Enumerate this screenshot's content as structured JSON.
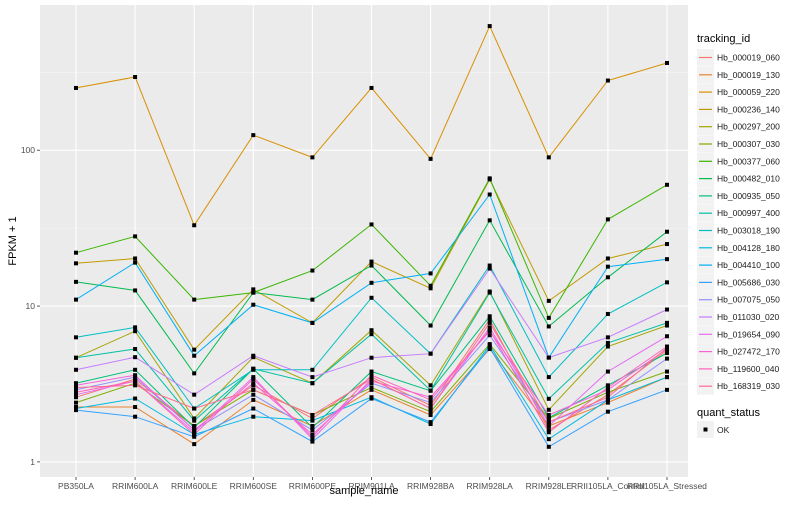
{
  "chart_data": {
    "type": "line",
    "xlabel": "sample_name",
    "ylabel": "FPKM + 1",
    "y_scale": "log10",
    "ylim": [
      0.8,
      855
    ],
    "y_ticks": [
      "1",
      "10",
      "100"
    ],
    "y_tick_values": [
      1,
      10,
      100
    ],
    "grid": true,
    "legend_position": "right",
    "categories": [
      "PB350LA",
      "RRIM600LA",
      "RRIM600LE",
      "RRIM600SE",
      "RRIM600PE",
      "RRIM901LA",
      "RRIM928BA",
      "RRIM928LA",
      "RRIM928LE",
      "RRII105LA_Control",
      "RRII105LA_Stressed"
    ],
    "color_legend_title": "tracking_id",
    "shape_legend_title": "quant_status",
    "shape_legend_items": [
      "OK"
    ],
    "series": [
      {
        "name": "Hb_000019_060",
        "color": "#F8766D",
        "values": [
          2.6,
          3.4,
          1.7,
          3.1,
          1.9,
          3.5,
          2.3,
          8.2,
          1.6,
          2.7,
          5.2
        ]
      },
      {
        "name": "Hb_000019_130",
        "color": "#EA8331",
        "values": [
          2.25,
          2.25,
          1.3,
          2.5,
          1.7,
          2.9,
          2.0,
          5.3,
          1.7,
          2.4,
          3.5
        ]
      },
      {
        "name": "Hb_000059_220",
        "color": "#D89000",
        "values": [
          251,
          295,
          33,
          125,
          90,
          251,
          88,
          626,
          90,
          280,
          363
        ]
      },
      {
        "name": "Hb_000236_140",
        "color": "#C09B00",
        "values": [
          18.8,
          20.2,
          5.25,
          12.8,
          7.8,
          19.3,
          13,
          65,
          10.8,
          20.2,
          25
        ]
      },
      {
        "name": "Hb_000297_200",
        "color": "#A3A500",
        "values": [
          4.66,
          6.9,
          1.9,
          4.7,
          3.2,
          7,
          3.1,
          12.4,
          2.16,
          5.5,
          7.5
        ]
      },
      {
        "name": "Hb_000307_030",
        "color": "#7CAE00",
        "values": [
          2.4,
          3.2,
          1.7,
          2.9,
          2.0,
          3.0,
          2.1,
          5.7,
          1.9,
          2.8,
          3.8
        ]
      },
      {
        "name": "Hb_000377_060",
        "color": "#39B600",
        "values": [
          22,
          28,
          11,
          12.2,
          16.9,
          33.4,
          13.5,
          66,
          8.4,
          36,
          60
        ]
      },
      {
        "name": "Hb_000482_010",
        "color": "#00BB4E",
        "values": [
          14.3,
          12.6,
          3.7,
          12.2,
          11,
          18.2,
          7.5,
          35.5,
          7.4,
          15.3,
          30
        ]
      },
      {
        "name": "Hb_000935_050",
        "color": "#00BF7D",
        "values": [
          3.2,
          3.9,
          1.66,
          3.96,
          1.66,
          3.8,
          2.86,
          8.6,
          1.92,
          3.1,
          5.0
        ]
      },
      {
        "name": "Hb_000997_400",
        "color": "#00C1A3",
        "values": [
          4.66,
          5.3,
          1.84,
          3.96,
          3.2,
          6.6,
          2.87,
          12.2,
          2.54,
          5.8,
          7.8
        ]
      },
      {
        "name": "Hb_003018_190",
        "color": "#00BFC4",
        "values": [
          6.3,
          7.3,
          2.2,
          3.9,
          3.9,
          11.3,
          4.95,
          18.2,
          3.5,
          8.9,
          14.2
        ]
      },
      {
        "name": "Hb_004128_180",
        "color": "#00BAE0",
        "values": [
          2.2,
          2.55,
          1.5,
          1.95,
          1.84,
          2.6,
          1.75,
          5.6,
          1.4,
          2.5,
          3.5
        ]
      },
      {
        "name": "Hb_004410_100",
        "color": "#00B0F6",
        "values": [
          11,
          19,
          4.8,
          10.2,
          7.8,
          14.1,
          16.2,
          52,
          4.67,
          17.9,
          20
        ]
      },
      {
        "name": "Hb_005686_030",
        "color": "#35A2FF",
        "values": [
          2.15,
          1.95,
          1.45,
          2.2,
          1.35,
          2.55,
          1.8,
          5.4,
          1.25,
          2.1,
          2.9
        ]
      },
      {
        "name": "Hb_007075_050",
        "color": "#9590FF",
        "values": [
          2.9,
          3.5,
          1.6,
          2.7,
          1.6,
          3.2,
          2.4,
          6.5,
          1.8,
          2.5,
          4.6
        ]
      },
      {
        "name": "Hb_011030_020",
        "color": "#C77CFF",
        "values": [
          3.9,
          4.7,
          2.7,
          4.8,
          3.5,
          4.66,
          4.95,
          17.4,
          4.67,
          6.3,
          9.5
        ]
      },
      {
        "name": "Hb_019654_090",
        "color": "#E76BF3",
        "values": [
          2.7,
          3.3,
          1.55,
          3.5,
          1.4,
          3.4,
          2.2,
          7.3,
          1.7,
          3.8,
          6.4
        ]
      },
      {
        "name": "Hb_027472_170",
        "color": "#FA62DB",
        "values": [
          3.1,
          3.6,
          1.6,
          3.2,
          1.5,
          3.3,
          2.6,
          6.9,
          2.0,
          2.9,
          5.3
        ]
      },
      {
        "name": "Hb_119600_040",
        "color": "#FF62BC",
        "values": [
          2.8,
          3.3,
          1.5,
          3.4,
          1.45,
          3.6,
          2.5,
          7.0,
          1.55,
          3.0,
          5.5
        ]
      },
      {
        "name": "Hb_168319_030",
        "color": "#FF6C91",
        "values": [
          3.0,
          3.1,
          2.2,
          2.9,
          2.0,
          3.4,
          2.2,
          7.8,
          1.8,
          2.6,
          5.4
        ]
      }
    ]
  }
}
